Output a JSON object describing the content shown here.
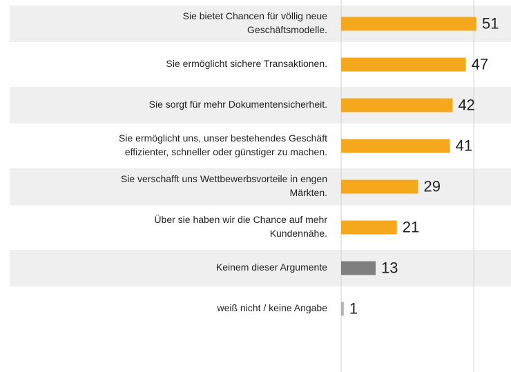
{
  "chart_data": {
    "type": "bar",
    "orientation": "horizontal",
    "categories": [
      [
        "Sie bietet Chancen für völlig neue",
        "Geschäftsmodelle."
      ],
      [
        "Sie ermöglicht sichere Transaktionen."
      ],
      [
        "Sie sorgt für mehr Dokumentensicherheit."
      ],
      [
        "Sie ermöglicht uns, unser bestehendes Geschäft",
        "effizienter, schneller oder günstiger zu machen."
      ],
      [
        "Sie verschafft uns Wettbewerbsvorteile in engen",
        "Märkten."
      ],
      [
        "Über sie haben wir die Chance auf mehr",
        "Kundennähe."
      ],
      [
        "Keinem dieser Argumente"
      ],
      [
        "weiß nicht / keine Angabe"
      ]
    ],
    "values": [
      51,
      47,
      42,
      41,
      29,
      21,
      13,
      1
    ],
    "colors": [
      "#f5a81c",
      "#f5a81c",
      "#f5a81c",
      "#f5a81c",
      "#f5a81c",
      "#f5a81c",
      "#7f7f7f",
      "#b3b3b3"
    ],
    "xlim": [
      0,
      64
    ],
    "xticks": [
      0,
      50
    ],
    "grid": true
  }
}
